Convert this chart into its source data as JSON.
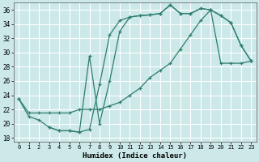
{
  "xlabel": "Humidex (Indice chaleur)",
  "bg_color": "#cce8e8",
  "grid_color": "#ffffff",
  "line_color": "#2e7d6e",
  "xlim": [
    -0.5,
    23.5
  ],
  "ylim": [
    17.5,
    37.0
  ],
  "xticks": [
    0,
    1,
    2,
    3,
    4,
    5,
    6,
    7,
    8,
    9,
    10,
    11,
    12,
    13,
    14,
    15,
    16,
    17,
    18,
    19,
    20,
    21,
    22,
    23
  ],
  "yticks": [
    18,
    20,
    22,
    24,
    26,
    28,
    30,
    32,
    34,
    36
  ],
  "line1_x": [
    0,
    1,
    2,
    3,
    4,
    5,
    6,
    7,
    8,
    9,
    10,
    11,
    12,
    13,
    14,
    15,
    16,
    17,
    18,
    19,
    20,
    21,
    22,
    23
  ],
  "line1_y": [
    23.5,
    21.0,
    20.5,
    19.5,
    19.0,
    19.0,
    18.8,
    19.2,
    25.5,
    32.5,
    34.5,
    35.0,
    35.2,
    35.3,
    35.5,
    36.7,
    35.5,
    35.5,
    36.2,
    36.0,
    35.2,
    34.2,
    31.0,
    28.8
  ],
  "line2_x": [
    3,
    4,
    5,
    6,
    7,
    8,
    9,
    10,
    11,
    12,
    13,
    14,
    15,
    16,
    17,
    18,
    19,
    20,
    21,
    22,
    23
  ],
  "line2_y": [
    19.5,
    19.0,
    19.0,
    18.8,
    29.5,
    20.0,
    26.0,
    33.0,
    35.0,
    35.2,
    35.3,
    35.5,
    36.7,
    35.5,
    35.5,
    36.2,
    36.0,
    35.2,
    34.2,
    31.0,
    28.8
  ],
  "line3_x": [
    0,
    1,
    2,
    3,
    4,
    5,
    6,
    7,
    8,
    9,
    10,
    11,
    12,
    13,
    14,
    15,
    16,
    17,
    18,
    19,
    20,
    21,
    22,
    23
  ],
  "line3_y": [
    23.5,
    21.5,
    21.5,
    21.5,
    21.5,
    21.5,
    22.0,
    22.0,
    22.0,
    22.5,
    23.0,
    24.0,
    25.0,
    26.5,
    27.5,
    28.5,
    30.5,
    32.5,
    34.5,
    36.0,
    28.5,
    28.5,
    28.5,
    28.8
  ]
}
